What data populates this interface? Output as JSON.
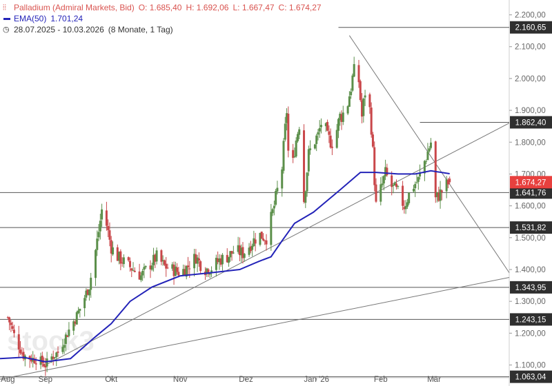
{
  "legend": {
    "title": "Palladium (Admiral Markets, Bid)",
    "open": "O: 1.685,40",
    "high": "H: 1.692,06",
    "low": "L: 1.667,47",
    "close": "C: 1.674,27",
    "ema_label": "EMA(50)",
    "ema_value": "1.701,24",
    "range": "28.07.2025 - 10.03.2026",
    "duration": "(8 Monate, 1 Tag)"
  },
  "watermark": "stock3",
  "colors": {
    "bull": "#5b8f4a",
    "bear": "#c9474a",
    "ema": "#2323b8",
    "trend": "#777777",
    "level_line": "#555555",
    "price_box": "#e8403e",
    "level_box": "#2f2f2f"
  },
  "chart_data": {
    "type": "candlestick",
    "instrument": "Palladium (Admiral Markets, Bid)",
    "y_ticks": [
      1100,
      1200,
      1300,
      1400,
      1500,
      1600,
      1700,
      1800,
      1900,
      2000,
      2100,
      2200
    ],
    "y_tick_labels": [
      "1.100,00",
      "1.200,00",
      "1.300,00",
      "1.400,00",
      "1.500,00",
      "1.600,00",
      "1.700,00",
      "1.800,00",
      "1.900,00",
      "2.000,00",
      "2.100,00",
      "2.200,00"
    ],
    "ylim": [
      1060,
      2225
    ],
    "x_labels": [
      "Aug",
      "Sep",
      "Okt",
      "Nov",
      "Dez",
      "Jan '26",
      "Feb",
      "Mär"
    ],
    "x_label_days": [
      0,
      24,
      66,
      110,
      152,
      197,
      238,
      272
    ],
    "x_range_days": [
      -5,
      320
    ],
    "ohlc_anchor_closes": [
      [
        0,
        1250
      ],
      [
        5,
        1180
      ],
      [
        10,
        1130
      ],
      [
        15,
        1120
      ],
      [
        20,
        1115
      ],
      [
        24,
        1100
      ],
      [
        28,
        1125
      ],
      [
        32,
        1140
      ],
      [
        36,
        1180
      ],
      [
        40,
        1220
      ],
      [
        44,
        1255
      ],
      [
        48,
        1300
      ],
      [
        52,
        1350
      ],
      [
        55,
        1430
      ],
      [
        58,
        1520
      ],
      [
        61,
        1620
      ],
      [
        63,
        1540
      ],
      [
        66,
        1470
      ],
      [
        70,
        1440
      ],
      [
        75,
        1420
      ],
      [
        80,
        1400
      ],
      [
        85,
        1380
      ],
      [
        90,
        1410
      ],
      [
        95,
        1440
      ],
      [
        100,
        1410
      ],
      [
        105,
        1400
      ],
      [
        110,
        1390
      ],
      [
        115,
        1410
      ],
      [
        120,
        1440
      ],
      [
        125,
        1400
      ],
      [
        130,
        1405
      ],
      [
        135,
        1430
      ],
      [
        140,
        1440
      ],
      [
        145,
        1460
      ],
      [
        150,
        1450
      ],
      [
        155,
        1480
      ],
      [
        160,
        1510
      ],
      [
        165,
        1500
      ],
      [
        170,
        1600
      ],
      [
        175,
        1720
      ],
      [
        178,
        1900
      ],
      [
        180,
        1640
      ],
      [
        183,
        1780
      ],
      [
        186,
        1860
      ],
      [
        189,
        1620
      ],
      [
        192,
        1760
      ],
      [
        195,
        1800
      ],
      [
        198,
        1820
      ],
      [
        201,
        1880
      ],
      [
        204,
        1810
      ],
      [
        208,
        1800
      ],
      [
        212,
        1880
      ],
      [
        216,
        1900
      ],
      [
        220,
        2000
      ],
      [
        223,
        2050
      ],
      [
        226,
        1880
      ],
      [
        229,
        2000
      ],
      [
        232,
        1850
      ],
      [
        235,
        1600
      ],
      [
        238,
        1650
      ],
      [
        241,
        1700
      ],
      [
        245,
        1660
      ],
      [
        249,
        1640
      ],
      [
        253,
        1600
      ],
      [
        258,
        1660
      ],
      [
        262,
        1680
      ],
      [
        266,
        1740
      ],
      [
        270,
        1800
      ],
      [
        273,
        1620
      ],
      [
        276,
        1640
      ],
      [
        279,
        1660
      ],
      [
        282,
        1674
      ]
    ],
    "last_candle": {
      "open": 1685.4,
      "high": 1692.06,
      "low": 1667.47,
      "close": 1674.27
    },
    "ema50": {
      "name": "EMA(50)",
      "current": 1701.24,
      "points": [
        [
          -5,
          1120
        ],
        [
          10,
          1124
        ],
        [
          24,
          1110
        ],
        [
          40,
          1120
        ],
        [
          55,
          1185
        ],
        [
          66,
          1230
        ],
        [
          78,
          1300
        ],
        [
          92,
          1345
        ],
        [
          110,
          1380
        ],
        [
          130,
          1390
        ],
        [
          148,
          1400
        ],
        [
          160,
          1425
        ],
        [
          168,
          1440
        ],
        [
          175,
          1490
        ],
        [
          183,
          1545
        ],
        [
          195,
          1580
        ],
        [
          212,
          1650
        ],
        [
          225,
          1705
        ],
        [
          235,
          1705
        ],
        [
          249,
          1700
        ],
        [
          260,
          1700
        ],
        [
          270,
          1710
        ],
        [
          282,
          1701
        ]
      ]
    },
    "horizontal_levels": [
      {
        "value": 2160.65,
        "label": "2.160,65",
        "from_day": 211
      },
      {
        "value": 1862.4,
        "label": "1.862,40",
        "from_day": 263
      },
      {
        "value": 1641.76,
        "label": "1.641,76",
        "from_day": -5
      },
      {
        "value": 1531.82,
        "label": "1.531,82",
        "from_day": -5
      },
      {
        "value": 1343.95,
        "label": "1.343,95",
        "from_day": -5
      },
      {
        "value": 1243.15,
        "label": "1.243,15",
        "from_day": -5
      },
      {
        "value": 1063.04,
        "label": "1.063,04",
        "from_day": -5
      }
    ],
    "trendlines": [
      {
        "from": [
          24,
          1100
        ],
        "to": [
          320,
          1860
        ]
      },
      {
        "from": [
          -5,
          1055
        ],
        "to": [
          320,
          1375
        ]
      },
      {
        "from": [
          218,
          2135
        ],
        "to": [
          320,
          1390
        ]
      }
    ],
    "current_price": {
      "value": 1674.27,
      "label": "1.674,27"
    }
  }
}
